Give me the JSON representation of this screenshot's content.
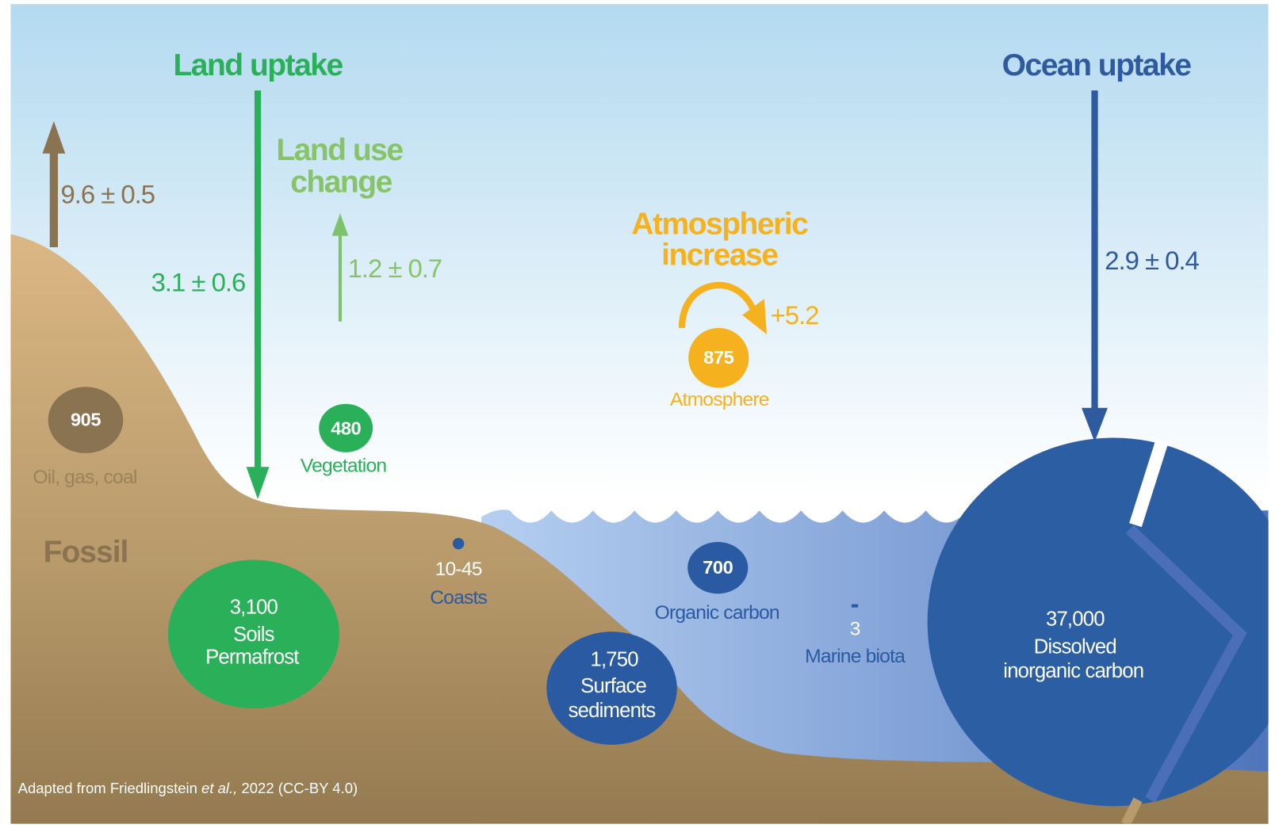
{
  "headings": {
    "land_uptake": "Land uptake",
    "land_use_change": [
      "Land use",
      "change"
    ],
    "atmospheric_increase": [
      "Atmospheric",
      "increase"
    ],
    "ocean_uptake": "Ocean uptake"
  },
  "flows": {
    "fossil": "9.6 ± 0.5",
    "land_uptake": "3.1 ± 0.6",
    "land_use_change": "1.2 ± 0.7",
    "atmospheric_increase": "+5.2",
    "ocean_uptake": "2.9 ± 0.4"
  },
  "pools": [
    {
      "value": "905",
      "label": [
        "Oil, gas, coal"
      ]
    },
    {
      "value": "480",
      "label": [
        "Vegetation"
      ]
    },
    {
      "value": "875",
      "label": [
        "Atmosphere"
      ]
    },
    {
      "value": "3,100",
      "label": [
        "Soils",
        "Permafrost"
      ]
    },
    {
      "value": "10-45",
      "label": [
        "Coasts"
      ]
    },
    {
      "value": "1,750",
      "label": [
        "Surface",
        "sediments"
      ]
    },
    {
      "value": "700",
      "label": [
        "Organic carbon"
      ]
    },
    {
      "value": "3",
      "label": [
        "Marine biota"
      ]
    },
    {
      "value": "37,000",
      "label": [
        "Dissolved",
        "inorganic carbon"
      ]
    }
  ],
  "region_label": "Fossil",
  "credit": {
    "before": "Adapted from Friedlingstein ",
    "italic": "et al.,",
    "after": " 2022 (CC-BY 4.0)"
  }
}
